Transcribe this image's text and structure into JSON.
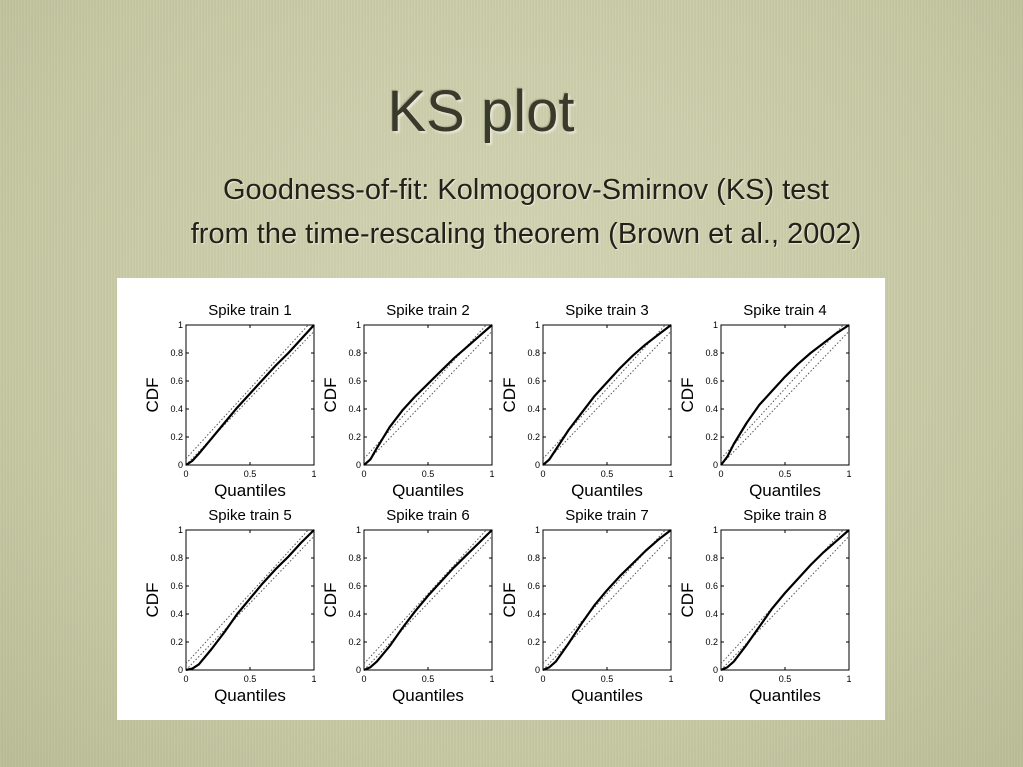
{
  "slide": {
    "title": "KS plot",
    "subtitle_line1": "Goodness-of-fit: Kolmogorov-Smirnov (KS) test",
    "subtitle_line2": "from the time-rescaling theorem (Brown et al., 2002)"
  },
  "chart_data": [
    {
      "type": "line",
      "title": "Spike train 1",
      "xlabel": "Quantiles",
      "ylabel": "CDF",
      "xlim": [
        0,
        1
      ],
      "ylim": [
        0,
        1
      ],
      "xticks": [
        "0",
        "0.5",
        "1"
      ],
      "yticks": [
        "0",
        "0.2",
        "0.4",
        "0.6",
        "0.8",
        "1"
      ],
      "x": [
        0,
        0.05,
        0.1,
        0.2,
        0.3,
        0.4,
        0.5,
        0.6,
        0.7,
        0.8,
        0.9,
        1
      ],
      "y": [
        0,
        0.03,
        0.08,
        0.19,
        0.3,
        0.41,
        0.51,
        0.61,
        0.71,
        0.8,
        0.9,
        1
      ]
    },
    {
      "type": "line",
      "title": "Spike train 2",
      "xlabel": "Quantiles",
      "ylabel": "CDF",
      "xlim": [
        0,
        1
      ],
      "ylim": [
        0,
        1
      ],
      "xticks": [
        "0",
        "0.5",
        "1"
      ],
      "yticks": [
        "0",
        "0.2",
        "0.4",
        "0.6",
        "0.8",
        "1"
      ],
      "x": [
        0,
        0.05,
        0.1,
        0.2,
        0.3,
        0.4,
        0.5,
        0.6,
        0.7,
        0.8,
        0.9,
        1
      ],
      "y": [
        0,
        0.04,
        0.12,
        0.27,
        0.39,
        0.49,
        0.58,
        0.67,
        0.76,
        0.84,
        0.92,
        1
      ]
    },
    {
      "type": "line",
      "title": "Spike train 3",
      "xlabel": "Quantiles",
      "ylabel": "CDF",
      "xlim": [
        0,
        1
      ],
      "ylim": [
        0,
        1
      ],
      "xticks": [
        "0",
        "0.5",
        "1"
      ],
      "yticks": [
        "0",
        "0.2",
        "0.4",
        "0.6",
        "0.8",
        "1"
      ],
      "x": [
        0,
        0.05,
        0.1,
        0.2,
        0.3,
        0.4,
        0.5,
        0.6,
        0.7,
        0.8,
        0.9,
        1
      ],
      "y": [
        0,
        0.04,
        0.11,
        0.25,
        0.37,
        0.49,
        0.59,
        0.69,
        0.78,
        0.86,
        0.93,
        1
      ]
    },
    {
      "type": "line",
      "title": "Spike train 4",
      "xlabel": "Quantiles",
      "ylabel": "CDF",
      "xlim": [
        0,
        1
      ],
      "ylim": [
        0,
        1
      ],
      "xticks": [
        "0",
        "0.5",
        "1"
      ],
      "yticks": [
        "0",
        "0.2",
        "0.4",
        "0.6",
        "0.8",
        "1"
      ],
      "x": [
        0,
        0.05,
        0.1,
        0.2,
        0.3,
        0.4,
        0.5,
        0.6,
        0.7,
        0.8,
        0.9,
        1
      ],
      "y": [
        0,
        0.06,
        0.15,
        0.3,
        0.43,
        0.53,
        0.63,
        0.72,
        0.8,
        0.87,
        0.94,
        1
      ]
    },
    {
      "type": "line",
      "title": "Spike train 5",
      "xlabel": "Quantiles",
      "ylabel": "CDF",
      "xlim": [
        0,
        1
      ],
      "ylim": [
        0,
        1
      ],
      "xticks": [
        "0",
        "0.5",
        "1"
      ],
      "yticks": [
        "0",
        "0.2",
        "0.4",
        "0.6",
        "0.8",
        "1"
      ],
      "x": [
        0,
        0.05,
        0.1,
        0.2,
        0.3,
        0.4,
        0.5,
        0.6,
        0.7,
        0.8,
        0.9,
        1
      ],
      "y": [
        0,
        0.01,
        0.04,
        0.15,
        0.27,
        0.4,
        0.51,
        0.62,
        0.72,
        0.81,
        0.91,
        1
      ]
    },
    {
      "type": "line",
      "title": "Spike train 6",
      "xlabel": "Quantiles",
      "ylabel": "CDF",
      "xlim": [
        0,
        1
      ],
      "ylim": [
        0,
        1
      ],
      "xticks": [
        "0",
        "0.5",
        "1"
      ],
      "yticks": [
        "0",
        "0.2",
        "0.4",
        "0.6",
        "0.8",
        "1"
      ],
      "x": [
        0,
        0.05,
        0.1,
        0.2,
        0.3,
        0.4,
        0.5,
        0.6,
        0.7,
        0.8,
        0.9,
        1
      ],
      "y": [
        0,
        0.02,
        0.06,
        0.17,
        0.3,
        0.42,
        0.53,
        0.63,
        0.73,
        0.82,
        0.91,
        1
      ]
    },
    {
      "type": "line",
      "title": "Spike train 7",
      "xlabel": "Quantiles",
      "ylabel": "CDF",
      "xlim": [
        0,
        1
      ],
      "ylim": [
        0,
        1
      ],
      "xticks": [
        "0",
        "0.5",
        "1"
      ],
      "yticks": [
        "0",
        "0.2",
        "0.4",
        "0.6",
        "0.8",
        "1"
      ],
      "x": [
        0,
        0.05,
        0.1,
        0.2,
        0.3,
        0.4,
        0.5,
        0.6,
        0.7,
        0.8,
        0.9,
        1
      ],
      "y": [
        0,
        0.02,
        0.06,
        0.19,
        0.33,
        0.46,
        0.57,
        0.67,
        0.76,
        0.85,
        0.93,
        1
      ]
    },
    {
      "type": "line",
      "title": "Spike train 8",
      "xlabel": "Quantiles",
      "ylabel": "CDF",
      "xlim": [
        0,
        1
      ],
      "ylim": [
        0,
        1
      ],
      "xticks": [
        "0",
        "0.5",
        "1"
      ],
      "yticks": [
        "0",
        "0.2",
        "0.4",
        "0.6",
        "0.8",
        "1"
      ],
      "x": [
        0,
        0.05,
        0.1,
        0.2,
        0.3,
        0.4,
        0.5,
        0.6,
        0.7,
        0.8,
        0.9,
        1
      ],
      "y": [
        0,
        0.02,
        0.06,
        0.18,
        0.31,
        0.44,
        0.55,
        0.65,
        0.75,
        0.84,
        0.92,
        1
      ]
    }
  ]
}
